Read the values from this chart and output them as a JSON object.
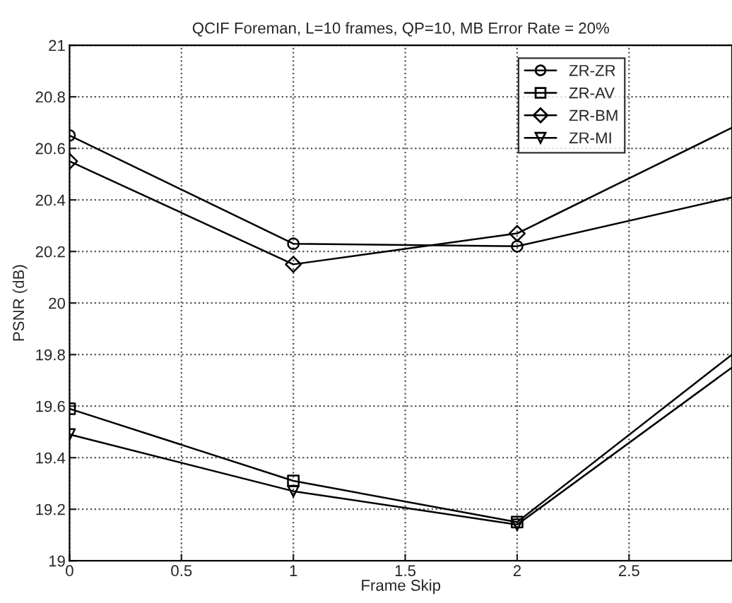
{
  "chart_data": {
    "type": "line",
    "title": "QCIF Foreman, L=10 frames, QP=10, MB Error Rate = 20%",
    "xlabel": "Frame Skip",
    "ylabel": "PSNR (dB)",
    "x": [
      0,
      1,
      2,
      2.96
    ],
    "series": [
      {
        "name": "ZR-ZR",
        "color": "#000000",
        "marker": "circle",
        "values": [
          20.65,
          20.23,
          20.22,
          20.41
        ]
      },
      {
        "name": "ZR-AV",
        "color": "#000000",
        "marker": "square",
        "values": [
          19.59,
          19.31,
          19.15,
          19.8
        ]
      },
      {
        "name": "ZR-BM",
        "color": "#000000",
        "marker": "diamond",
        "values": [
          20.55,
          20.15,
          20.27,
          20.68
        ]
      },
      {
        "name": "ZR-MI",
        "color": "#000000",
        "marker": "triangle",
        "values": [
          19.49,
          19.27,
          19.14,
          19.75
        ]
      }
    ],
    "xlim": [
      0,
      2.96
    ],
    "xticks": [
      0,
      0.5,
      1,
      1.5,
      2,
      2.5
    ],
    "ylim": [
      19,
      21
    ],
    "yticks": [
      19,
      19.2,
      19.4,
      19.6,
      19.8,
      20,
      20.2,
      20.4,
      20.6,
      20.8,
      21
    ],
    "grid": true,
    "legend": "top right",
    "line_style": "solid"
  }
}
